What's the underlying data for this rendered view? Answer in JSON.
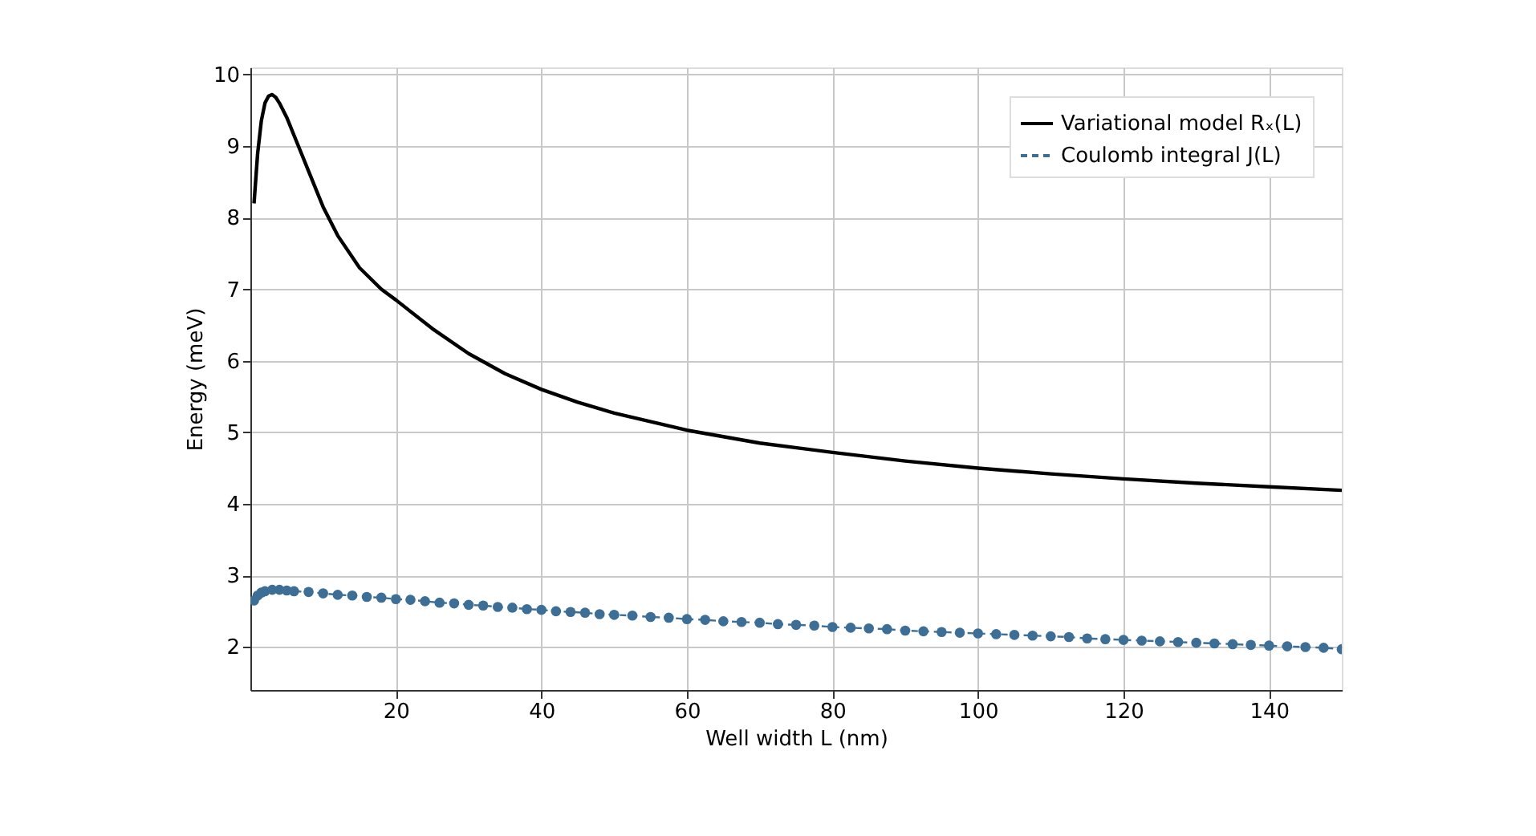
{
  "chart_data": {
    "type": "line",
    "xlabel": "Well width L (nm)",
    "ylabel": "Energy (meV)",
    "xlim": [
      0,
      150
    ],
    "xticks": [
      20,
      40,
      60,
      80,
      100,
      120,
      140
    ],
    "ylim": [
      1.4,
      10.1
    ],
    "yticks": [
      2,
      3,
      4,
      5,
      6,
      7,
      8,
      9,
      10
    ],
    "grid": true,
    "legend": "top right",
    "series": [
      {
        "name": "Variational model Rₓ(L)",
        "color": "#000000",
        "line_style": "solid",
        "marker": "none",
        "x": [
          0.5,
          1,
          1.5,
          2,
          2.5,
          3,
          3.5,
          4,
          5,
          6,
          7,
          8,
          10,
          12,
          15,
          18,
          20,
          25,
          30,
          35,
          40,
          45,
          50,
          60,
          70,
          80,
          90,
          100,
          110,
          120,
          130,
          140,
          150
        ],
        "values": [
          8.2,
          8.9,
          9.35,
          9.6,
          9.7,
          9.72,
          9.68,
          9.6,
          9.4,
          9.15,
          8.9,
          8.65,
          8.15,
          7.75,
          7.3,
          7.0,
          6.85,
          6.45,
          6.1,
          5.82,
          5.6,
          5.42,
          5.27,
          5.03,
          4.85,
          4.72,
          4.6,
          4.5,
          4.42,
          4.35,
          4.29,
          4.24,
          4.19
        ]
      },
      {
        "name": "Coulomb integral J(L)",
        "color": "#3d6f96",
        "line_style": "dashed",
        "marker": "circle",
        "x": [
          0.5,
          1,
          1.5,
          2,
          3,
          4,
          5,
          6,
          8,
          10,
          12,
          14,
          16,
          18,
          20,
          22,
          24,
          26,
          28,
          30,
          32,
          34,
          36,
          38,
          40,
          42,
          44,
          46,
          48,
          50,
          52.5,
          55,
          57.5,
          60,
          62.5,
          65,
          67.5,
          70,
          72.5,
          75,
          77.5,
          80,
          82.5,
          85,
          87.5,
          90,
          92.5,
          95,
          97.5,
          100,
          102.5,
          105,
          107.5,
          110,
          112.5,
          115,
          117.5,
          120,
          122.5,
          125,
          127.5,
          130,
          132.5,
          135,
          137.5,
          140,
          142.5,
          145,
          147.5,
          150
        ],
        "values": [
          2.65,
          2.72,
          2.76,
          2.78,
          2.8,
          2.8,
          2.79,
          2.78,
          2.77,
          2.75,
          2.73,
          2.72,
          2.7,
          2.69,
          2.67,
          2.66,
          2.64,
          2.62,
          2.61,
          2.59,
          2.58,
          2.56,
          2.55,
          2.53,
          2.52,
          2.5,
          2.49,
          2.48,
          2.46,
          2.45,
          2.44,
          2.42,
          2.41,
          2.39,
          2.38,
          2.36,
          2.35,
          2.34,
          2.32,
          2.31,
          2.3,
          2.28,
          2.27,
          2.26,
          2.25,
          2.23,
          2.22,
          2.21,
          2.2,
          2.19,
          2.18,
          2.17,
          2.16,
          2.15,
          2.14,
          2.12,
          2.11,
          2.1,
          2.09,
          2.08,
          2.07,
          2.06,
          2.05,
          2.04,
          2.03,
          2.02,
          2.01,
          2.0,
          1.99,
          1.97
        ]
      }
    ]
  }
}
